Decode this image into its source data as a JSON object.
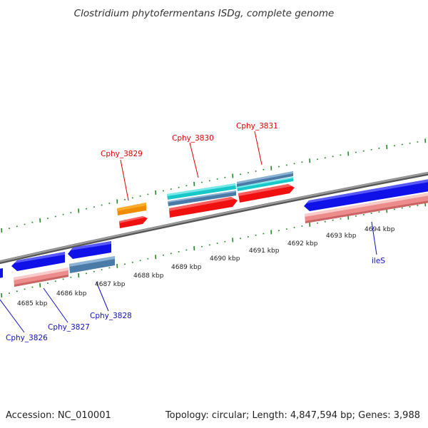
{
  "title": "Clostridium phytofermentans ISDg, complete genome",
  "footer": {
    "accession": "Accession: NC_010001",
    "summary": "Topology: circular; Length: 4,847,594 bp; Genes: 3,988"
  },
  "colors": {
    "backbone": "#8a8a8a",
    "tick": "#2a8a2a",
    "cds_blue": "#1010e8",
    "cds_red": "#f01010",
    "cds_pink": "#ec8c8c",
    "cds_steel": "#4a7aa8",
    "cds_cyan": "#18c8c8",
    "cds_orange": "#f08c00",
    "label_red": "#e00000",
    "label_blue": "#1010c0"
  },
  "ruler_labels": [
    "4685 kbp",
    "4686 kbp",
    "4687 kbp",
    "4688 kbp",
    "4689 kbp",
    "4690 kbp",
    "4691 kbp",
    "4692 kbp",
    "4693 kbp",
    "4694 kbp"
  ],
  "gene_labels": {
    "cphy_3829": "Cphy_3829",
    "cphy_3830": "Cphy_3830",
    "cphy_3831": "Cphy_3831",
    "cphy_3826": "Cphy_3826",
    "cphy_3827": "Cphy_3827",
    "cphy_3828": "Cphy_3828",
    "iles": "ileS"
  }
}
